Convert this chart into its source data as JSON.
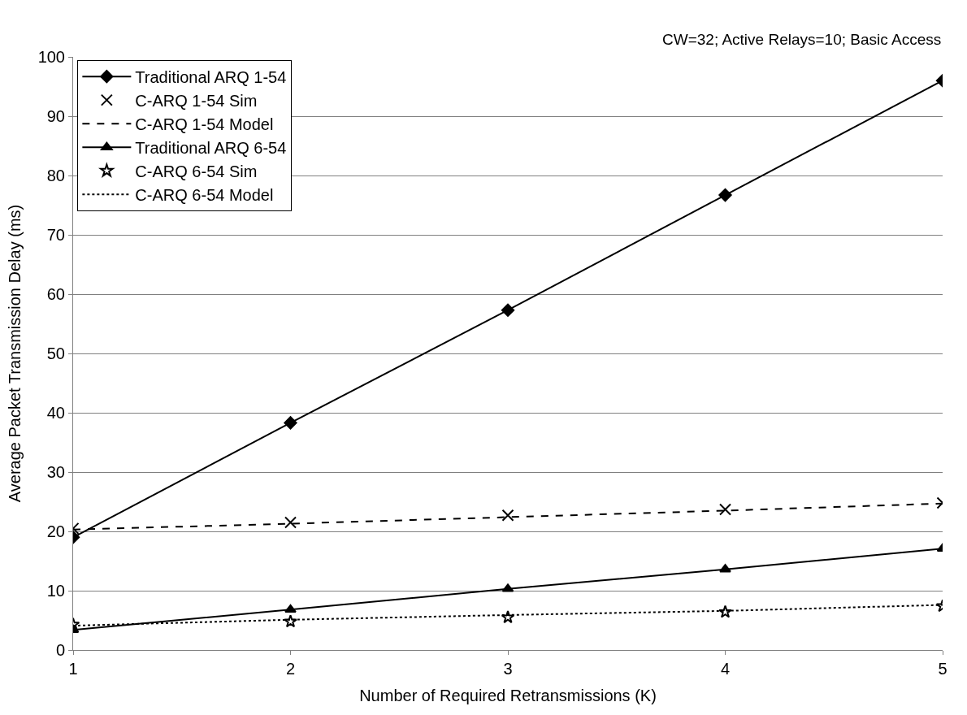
{
  "chart_data": {
    "type": "line",
    "x": [
      1,
      2,
      3,
      4,
      5
    ],
    "xlim": [
      1,
      5
    ],
    "xticks": [
      1,
      2,
      3,
      4,
      5
    ],
    "ylim": [
      0,
      100
    ],
    "yticks": [
      0,
      10,
      20,
      30,
      40,
      50,
      60,
      70,
      80,
      90,
      100
    ],
    "xlabel": "Number of Required Retransmissions (K)",
    "ylabel": "Average Packet Transmission Delay (ms)",
    "annotations": [
      "CW=32; Active Relays=10; Basic Access"
    ],
    "grid": "y",
    "legend": "top left",
    "series": [
      {
        "name": "Traditional ARQ 1-54",
        "color": "#000000",
        "marker": "diamond",
        "line_style": "solid",
        "values": [
          19,
          38.3,
          57.3,
          76.7,
          96
        ]
      },
      {
        "name": "C-ARQ 1-54 Sim",
        "type": "scatter",
        "color": "#000000",
        "marker": "cross",
        "values": [
          20.5,
          21.5,
          22.7,
          23.7,
          24.8
        ]
      },
      {
        "name": "C-ARQ 1-54 Model",
        "color": "#000000",
        "marker": "none",
        "line_style": "dashed",
        "values": [
          20.3,
          21.3,
          22.4,
          23.5,
          24.7
        ]
      },
      {
        "name": "Traditional ARQ 6-54",
        "color": "#000000",
        "marker": "triangle",
        "line_style": "solid",
        "values": [
          3.4,
          6.8,
          10.3,
          13.6,
          17.1
        ]
      },
      {
        "name": "C-ARQ 6-54 Sim",
        "type": "scatter",
        "color": "#000000",
        "marker": "star",
        "values": [
          4.3,
          4.8,
          5.5,
          6.4,
          7.4
        ]
      },
      {
        "name": "C-ARQ 6-54 Model",
        "color": "#000000",
        "marker": "none",
        "line_style": "dotted",
        "values": [
          4.1,
          5.1,
          5.9,
          6.6,
          7.6
        ]
      }
    ]
  }
}
